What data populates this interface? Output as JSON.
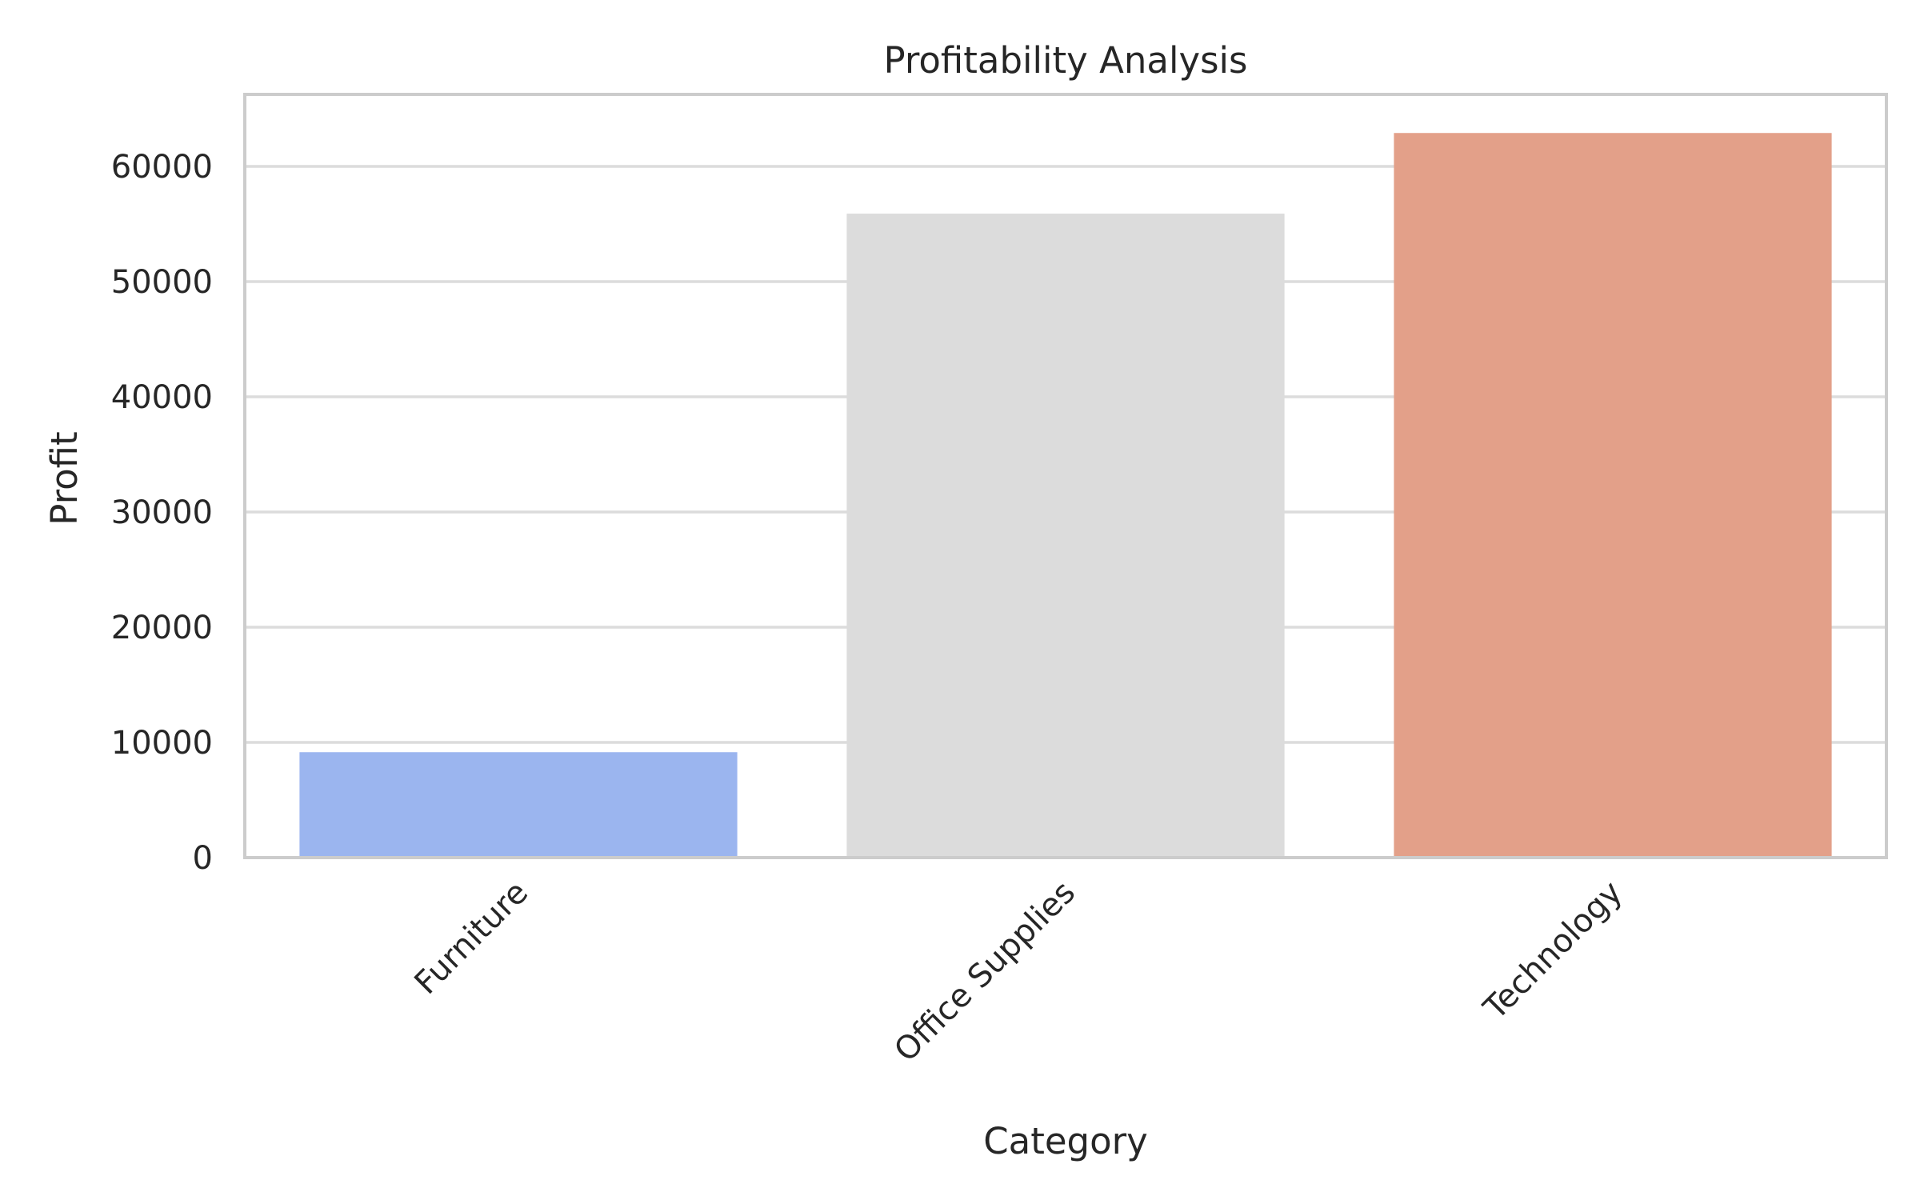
{
  "chart_data": {
    "type": "bar",
    "title": "Profitability Analysis",
    "xlabel": "Category",
    "ylabel": "Profit",
    "categories": [
      "Furniture",
      "Office Supplies",
      "Technology"
    ],
    "values": [
      9150,
      55900,
      62900
    ],
    "ylim": [
      0,
      66250
    ],
    "yticks": [
      0,
      10000,
      20000,
      30000,
      40000,
      50000,
      60000
    ],
    "ytick_labels": [
      "0",
      "10000",
      "20000",
      "30000",
      "40000",
      "50000",
      "60000"
    ],
    "colors": [
      "#9bb5ef",
      "#dcdcdc",
      "#e3a089"
    ],
    "grid": "horizontal",
    "legend": "none"
  }
}
